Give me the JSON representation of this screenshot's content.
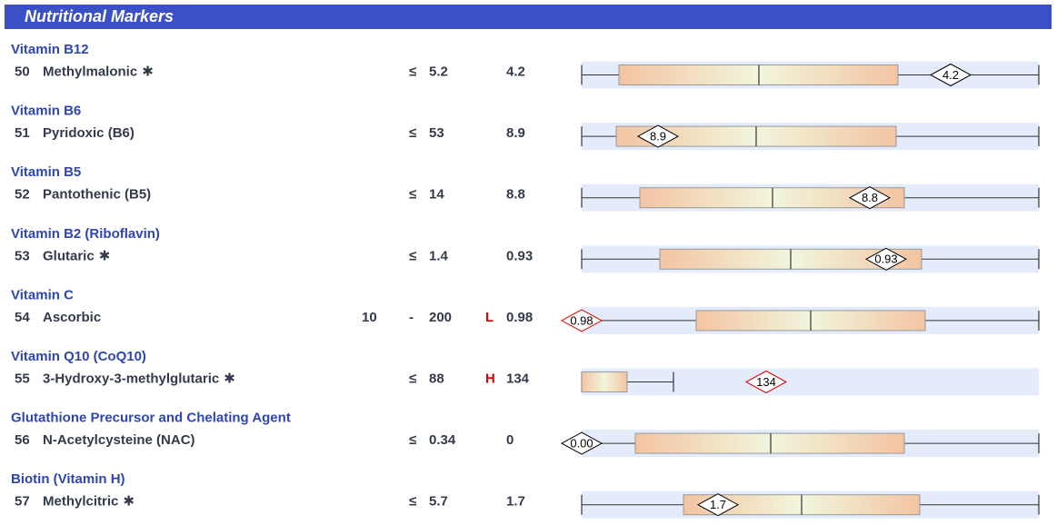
{
  "header": {
    "title": "Nutritional Markers"
  },
  "rows": [
    {
      "group": "Vitamin B12",
      "number": "50",
      "name": "Methylmalonic",
      "note_mark": "✱",
      "range_sign": "≤",
      "range_high": "5.2",
      "value": "4.2",
      "marker": "4.2"
    },
    {
      "group": "Vitamin B6",
      "number": "51",
      "name": "Pyridoxic (B6)",
      "range_sign": "≤",
      "range_high": "53",
      "value": "8.9",
      "marker": "8.9"
    },
    {
      "group": "Vitamin B5",
      "number": "52",
      "name": "Pantothenic (B5)",
      "range_sign": "≤",
      "range_high": "14",
      "value": "8.8",
      "marker": "8.8"
    },
    {
      "group": "Vitamin B2 (Riboflavin)",
      "number": "53",
      "name": "Glutaric",
      "note_mark": "✱",
      "range_sign": "≤",
      "range_high": "1.4",
      "value": "0.93",
      "marker": "0.93"
    },
    {
      "group": "Vitamin C",
      "number": "54",
      "name": "Ascorbic",
      "range_low": "10",
      "range_sign": "-",
      "range_high": "200",
      "flag": "L",
      "value": "0.98",
      "marker": "0.98"
    },
    {
      "group": "Vitamin Q10 (CoQ10)",
      "number": "55",
      "name": "3-Hydroxy-3-methylglutaric",
      "note_mark": "✱",
      "range_sign": "≤",
      "range_high": "88",
      "flag": "H",
      "value": "134",
      "marker": "134"
    },
    {
      "group": "Glutathione Precursor and Chelating Agent",
      "number": "56",
      "name": "N-Acetylcysteine (NAC)",
      "range_sign": "≤",
      "range_high": "0.34",
      "value": "0",
      "marker": "0.00"
    },
    {
      "group": "Biotin (Vitamin H)",
      "number": "57",
      "name": "Methylcitric",
      "note_mark": "✱",
      "range_sign": "≤",
      "range_high": "5.7",
      "value": "1.7",
      "marker": "1.7"
    }
  ]
}
